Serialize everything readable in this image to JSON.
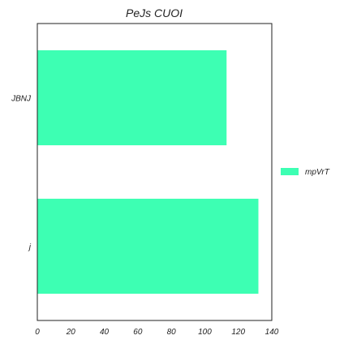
{
  "chart_data": {
    "type": "bar",
    "orientation": "horizontal",
    "title": "PeJs CUOI",
    "xlabel": "",
    "ylabel": "",
    "categories": [
      "JBNJ",
      "j"
    ],
    "series": [
      {
        "name": "mpVrT",
        "values": [
          113,
          132
        ],
        "color": "#3dffb3"
      }
    ],
    "xlim": [
      0,
      140
    ],
    "xticks": [
      0,
      20,
      40,
      60,
      80,
      100,
      120,
      140
    ],
    "grid": false,
    "legend_position": "right"
  }
}
